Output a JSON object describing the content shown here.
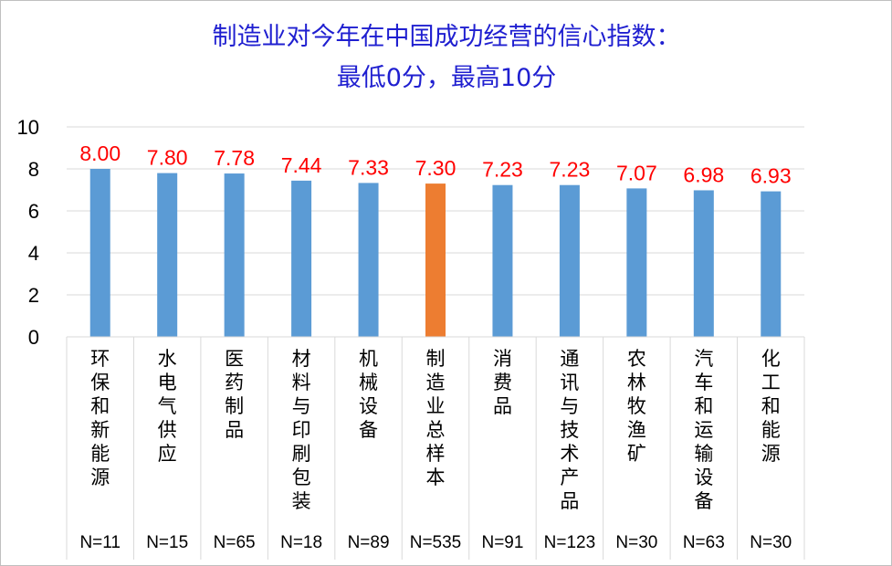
{
  "chart_data": {
    "type": "bar",
    "title": "制造业对今年在中国成功经营的信心指数：",
    "subtitle": "最低0分，最高10分",
    "categories": [
      "环保和新能源",
      "水电气供应",
      "医药制品",
      "材料与印刷包装",
      "机械设备",
      "制造业总样本",
      "消费品",
      "通讯与技术产品",
      "农林牧渔矿",
      "汽车和运输设备",
      "化工和能源"
    ],
    "sample_sizes": [
      "N=11",
      "N=15",
      "N=65",
      "N=18",
      "N=89",
      "N=535",
      "N=91",
      "N=123",
      "N=30",
      "N=63",
      "N=30"
    ],
    "values": [
      8.0,
      7.8,
      7.78,
      7.44,
      7.33,
      7.3,
      7.23,
      7.23,
      7.07,
      6.98,
      6.93
    ],
    "data_labels": [
      "8.00",
      "7.80",
      "7.78",
      "7.44",
      "7.33",
      "7.30",
      "7.23",
      "7.23",
      "7.07",
      "6.98",
      "6.93"
    ],
    "ylim": [
      0,
      10
    ],
    "yticks": [
      "0",
      "2",
      "4",
      "6",
      "8",
      "10"
    ],
    "grid": true,
    "colors": {
      "bar": "#5b9bd5",
      "highlight_bar": "#ed7d31",
      "data_label": "#ff0000",
      "title": "#1f1fd0",
      "grid": "#d9d9d9"
    },
    "highlight_index": 5
  }
}
